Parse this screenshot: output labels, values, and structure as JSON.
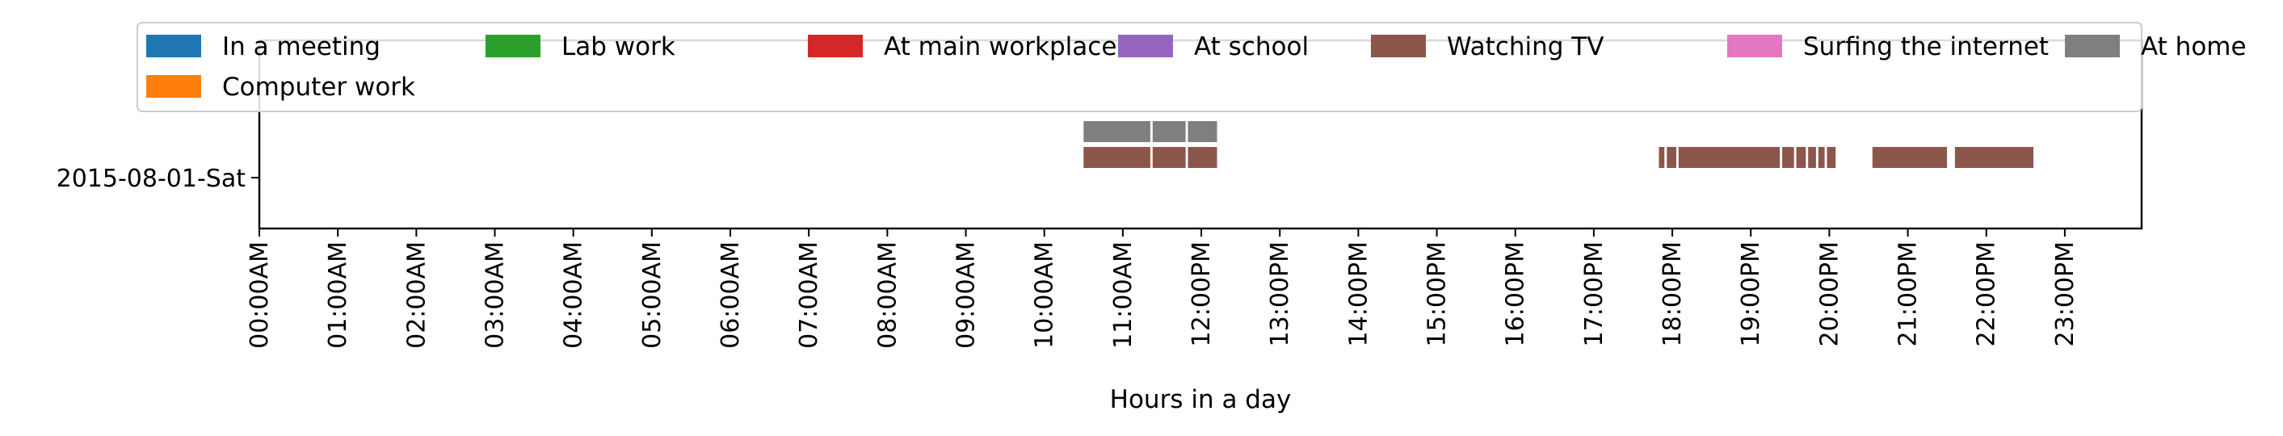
{
  "chart_data": {
    "type": "timeline",
    "title": "",
    "xlabel": "Hours in a day",
    "ylabel": "",
    "xlim": [
      0,
      24
    ],
    "x_ticks": [
      {
        "value": 0,
        "label": "00:00AM"
      },
      {
        "value": 1,
        "label": "01:00AM"
      },
      {
        "value": 2,
        "label": "02:00AM"
      },
      {
        "value": 3,
        "label": "03:00AM"
      },
      {
        "value": 4,
        "label": "04:00AM"
      },
      {
        "value": 5,
        "label": "05:00AM"
      },
      {
        "value": 6,
        "label": "06:00AM"
      },
      {
        "value": 7,
        "label": "07:00AM"
      },
      {
        "value": 8,
        "label": "08:00AM"
      },
      {
        "value": 9,
        "label": "09:00AM"
      },
      {
        "value": 10,
        "label": "10:00AM"
      },
      {
        "value": 11,
        "label": "11:00AM"
      },
      {
        "value": 12,
        "label": "12:00PM"
      },
      {
        "value": 13,
        "label": "13:00PM"
      },
      {
        "value": 14,
        "label": "14:00PM"
      },
      {
        "value": 15,
        "label": "15:00PM"
      },
      {
        "value": 16,
        "label": "16:00PM"
      },
      {
        "value": 17,
        "label": "17:00PM"
      },
      {
        "value": 18,
        "label": "18:00PM"
      },
      {
        "value": 19,
        "label": "19:00PM"
      },
      {
        "value": 20,
        "label": "20:00PM"
      },
      {
        "value": 21,
        "label": "21:00PM"
      },
      {
        "value": 22,
        "label": "22:00PM"
      },
      {
        "value": 23,
        "label": "23:00PM"
      }
    ],
    "categories": [
      "2015-08-01-Sat"
    ],
    "legend": {
      "placement": "top",
      "entries": [
        {
          "name": "In a meeting",
          "color": "#1f77b4"
        },
        {
          "name": "Lab work",
          "color": "#2ca02c"
        },
        {
          "name": "At main workplace",
          "color": "#d62728"
        },
        {
          "name": "At school",
          "color": "#9467bd"
        },
        {
          "name": "Watching TV",
          "color": "#8c564b"
        },
        {
          "name": "Surfing the internet",
          "color": "#e377c2"
        },
        {
          "name": "At home",
          "color": "#7f7f7f"
        },
        {
          "name": "Computer work",
          "color": "#ff7f0e"
        }
      ]
    },
    "series": [
      {
        "name": "At home",
        "row": "2015-08-01-Sat",
        "lane": "upper",
        "color": "#7f7f7f",
        "intervals": [
          [
            10.5,
            11.35
          ],
          [
            11.38,
            11.8
          ],
          [
            11.83,
            12.2
          ]
        ]
      },
      {
        "name": "Watching TV",
        "row": "2015-08-01-Sat",
        "lane": "lower",
        "color": "#8c564b",
        "intervals": [
          [
            10.5,
            11.35
          ],
          [
            11.38,
            11.8
          ],
          [
            11.83,
            12.2
          ],
          [
            17.83,
            17.9
          ],
          [
            17.93,
            18.05
          ],
          [
            18.08,
            19.37
          ],
          [
            19.4,
            19.55
          ],
          [
            19.58,
            19.7
          ],
          [
            19.73,
            19.83
          ],
          [
            19.86,
            19.94
          ],
          [
            19.97,
            20.08
          ],
          [
            20.55,
            21.5
          ],
          [
            21.6,
            22.6
          ]
        ]
      }
    ]
  }
}
